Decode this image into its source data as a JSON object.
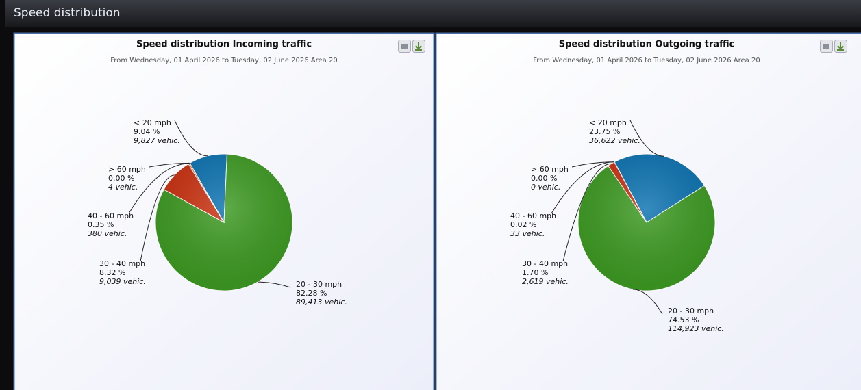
{
  "header": "Speed distribution",
  "chart_data": [
    {
      "type": "pie",
      "title": "Speed distribution Incoming traffic",
      "subtitle": "From Wednesday, 01 April 2026 to Tuesday, 02 June 2026 Area 20",
      "categories": [
        "< 20 mph",
        "20 - 30 mph",
        "30 - 40 mph",
        "40 - 60 mph",
        "> 60 mph"
      ],
      "values": [
        9.04,
        82.28,
        8.32,
        0.35,
        0.0
      ],
      "value_labels": [
        "9.04 %",
        "82.28 %",
        "8.32 %",
        "0.35 %",
        "0.00 %"
      ],
      "counts": [
        9827,
        89413,
        9039,
        380,
        4
      ],
      "count_labels": [
        "9,827 vehic.",
        "89,413 vehic.",
        "9,039 vehic.",
        "380 vehic.",
        "4 vehic."
      ],
      "colors": [
        "#0b72b0",
        "#3d9a22",
        "#c9300f",
        "#e2581a",
        "#7a3fa0"
      ]
    },
    {
      "type": "pie",
      "title": "Speed distribution Outgoing traffic",
      "subtitle": "From Wednesday, 01 April 2026 to Tuesday, 02 June 2026 Area 20",
      "categories": [
        "< 20 mph",
        "20 - 30 mph",
        "30 - 40 mph",
        "40 - 60 mph",
        "> 60 mph"
      ],
      "values": [
        23.75,
        74.53,
        1.7,
        0.02,
        0.0
      ],
      "value_labels": [
        "23.75 %",
        "74.53 %",
        "1.70 %",
        "0.02 %",
        "0.00 %"
      ],
      "counts": [
        36622,
        114923,
        2619,
        33,
        0
      ],
      "count_labels": [
        "36,622 vehic.",
        "114,923 vehic.",
        "2,619 vehic.",
        "33 vehic.",
        "0 vehic."
      ],
      "colors": [
        "#0b72b0",
        "#3d9a22",
        "#c9300f",
        "#e2581a",
        "#7a3fa0"
      ]
    }
  ]
}
